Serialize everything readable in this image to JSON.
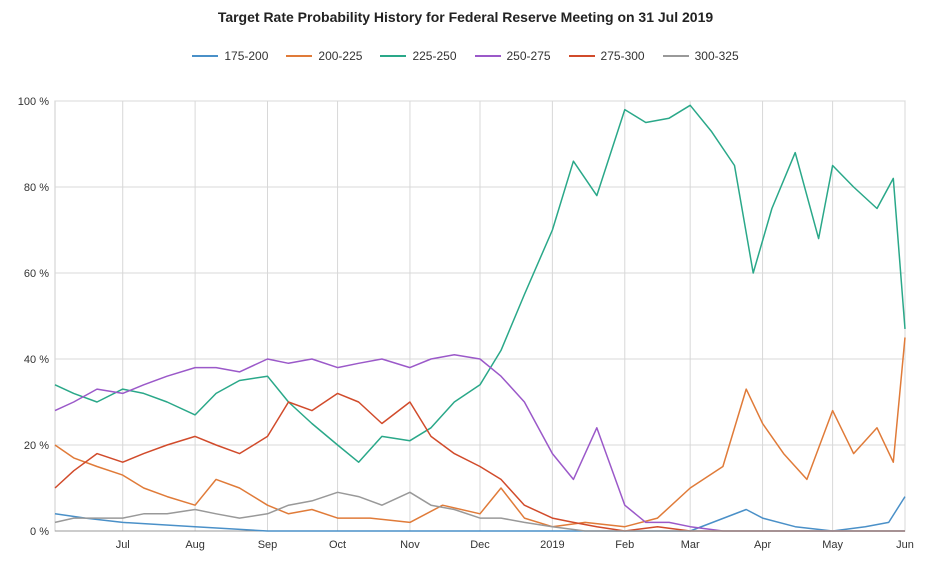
{
  "chart_data": {
    "type": "line",
    "title": "Target Rate Probability History for Federal Reserve Meeting on 31 Jul 2019",
    "xlabel": "",
    "ylabel": "",
    "ylim": [
      0,
      100
    ],
    "y_ticks": [
      "0 %",
      "20 %",
      "40 %",
      "60 %",
      "80 %",
      "100 %"
    ],
    "y_tick_values": [
      0,
      20,
      40,
      60,
      80,
      100
    ],
    "x_ticks": [
      "Jul",
      "Aug",
      "Sep",
      "Oct",
      "Nov",
      "Dec",
      "2019",
      "Feb",
      "Mar",
      "Apr",
      "May",
      "Jun"
    ],
    "x_tick_dates": [
      "2018-07-01",
      "2018-08-01",
      "2018-09-01",
      "2018-10-01",
      "2018-11-01",
      "2018-12-01",
      "2019-01-01",
      "2019-02-01",
      "2019-03-01",
      "2019-04-01",
      "2019-05-01",
      "2019-06-01"
    ],
    "xlim": [
      "2018-06-02",
      "2019-06-01"
    ],
    "grid": true,
    "legend_position": "top-center",
    "series": [
      {
        "name": "175-200",
        "color": "#4a90c8",
        "x": [
          "2018-06-02",
          "2018-06-15",
          "2018-07-01",
          "2018-08-01",
          "2018-09-01",
          "2018-10-01",
          "2018-11-01",
          "2018-12-01",
          "2019-01-01",
          "2019-02-01",
          "2019-03-01",
          "2019-03-25",
          "2019-04-01",
          "2019-04-15",
          "2019-05-01",
          "2019-05-15",
          "2019-05-25",
          "2019-06-01"
        ],
        "y": [
          4,
          3,
          2,
          1,
          0,
          0,
          0,
          0,
          0,
          0,
          0,
          5,
          3,
          1,
          0,
          1,
          2,
          8
        ]
      },
      {
        "name": "200-225",
        "color": "#e07b39",
        "x": [
          "2018-06-02",
          "2018-06-10",
          "2018-06-20",
          "2018-07-01",
          "2018-07-10",
          "2018-07-20",
          "2018-08-01",
          "2018-08-10",
          "2018-08-20",
          "2018-09-01",
          "2018-09-10",
          "2018-09-20",
          "2018-10-01",
          "2018-10-15",
          "2018-11-01",
          "2018-11-15",
          "2018-12-01",
          "2018-12-10",
          "2018-12-20",
          "2019-01-01",
          "2019-01-15",
          "2019-02-01",
          "2019-02-15",
          "2019-03-01",
          "2019-03-15",
          "2019-03-25",
          "2019-04-01",
          "2019-04-10",
          "2019-04-20",
          "2019-05-01",
          "2019-05-10",
          "2019-05-20",
          "2019-05-27",
          "2019-06-01"
        ],
        "y": [
          20,
          17,
          15,
          13,
          10,
          8,
          6,
          12,
          10,
          6,
          4,
          5,
          3,
          3,
          2,
          6,
          4,
          10,
          3,
          1,
          2,
          1,
          3,
          10,
          15,
          33,
          25,
          18,
          12,
          28,
          18,
          24,
          16,
          45
        ]
      },
      {
        "name": "225-250",
        "color": "#2aa889",
        "x": [
          "2018-06-02",
          "2018-06-10",
          "2018-06-20",
          "2018-07-01",
          "2018-07-10",
          "2018-07-20",
          "2018-08-01",
          "2018-08-10",
          "2018-08-20",
          "2018-09-01",
          "2018-09-10",
          "2018-09-20",
          "2018-10-01",
          "2018-10-10",
          "2018-10-20",
          "2018-11-01",
          "2018-11-10",
          "2018-11-20",
          "2018-12-01",
          "2018-12-10",
          "2018-12-20",
          "2019-01-01",
          "2019-01-10",
          "2019-01-20",
          "2019-02-01",
          "2019-02-10",
          "2019-02-20",
          "2019-03-01",
          "2019-03-10",
          "2019-03-20",
          "2019-03-28",
          "2019-04-05",
          "2019-04-15",
          "2019-04-25",
          "2019-05-01",
          "2019-05-10",
          "2019-05-20",
          "2019-05-27",
          "2019-06-01"
        ],
        "y": [
          34,
          32,
          30,
          33,
          32,
          30,
          27,
          32,
          35,
          36,
          30,
          25,
          20,
          16,
          22,
          21,
          24,
          30,
          34,
          42,
          55,
          70,
          86,
          78,
          98,
          95,
          96,
          99,
          93,
          85,
          60,
          75,
          88,
          68,
          85,
          80,
          75,
          82,
          47
        ]
      },
      {
        "name": "250-275",
        "color": "#9b59c9",
        "x": [
          "2018-06-02",
          "2018-06-10",
          "2018-06-20",
          "2018-07-01",
          "2018-07-10",
          "2018-07-20",
          "2018-08-01",
          "2018-08-10",
          "2018-08-20",
          "2018-09-01",
          "2018-09-10",
          "2018-09-20",
          "2018-10-01",
          "2018-10-10",
          "2018-10-20",
          "2018-11-01",
          "2018-11-10",
          "2018-11-20",
          "2018-12-01",
          "2018-12-10",
          "2018-12-20",
          "2019-01-01",
          "2019-01-10",
          "2019-01-20",
          "2019-02-01",
          "2019-02-10",
          "2019-02-20",
          "2019-03-01",
          "2019-03-15",
          "2019-04-01",
          "2019-06-01"
        ],
        "y": [
          28,
          30,
          33,
          32,
          34,
          36,
          38,
          38,
          37,
          40,
          39,
          40,
          38,
          39,
          40,
          38,
          40,
          41,
          40,
          36,
          30,
          18,
          12,
          24,
          6,
          2,
          2,
          1,
          0,
          0,
          0
        ]
      },
      {
        "name": "275-300",
        "color": "#d14b2b",
        "x": [
          "2018-06-02",
          "2018-06-10",
          "2018-06-20",
          "2018-07-01",
          "2018-07-10",
          "2018-07-20",
          "2018-08-01",
          "2018-08-10",
          "2018-08-20",
          "2018-09-01",
          "2018-09-10",
          "2018-09-20",
          "2018-10-01",
          "2018-10-10",
          "2018-10-20",
          "2018-11-01",
          "2018-11-10",
          "2018-11-20",
          "2018-12-01",
          "2018-12-10",
          "2018-12-20",
          "2019-01-01",
          "2019-01-10",
          "2019-01-20",
          "2019-02-01",
          "2019-02-15",
          "2019-03-01",
          "2019-04-01",
          "2019-06-01"
        ],
        "y": [
          10,
          14,
          18,
          16,
          18,
          20,
          22,
          20,
          18,
          22,
          30,
          28,
          32,
          30,
          25,
          30,
          22,
          18,
          15,
          12,
          6,
          3,
          2,
          1,
          0,
          1,
          0,
          0,
          0
        ]
      },
      {
        "name": "300-325",
        "color": "#999999",
        "x": [
          "2018-06-02",
          "2018-06-10",
          "2018-06-20",
          "2018-07-01",
          "2018-07-10",
          "2018-07-20",
          "2018-08-01",
          "2018-08-10",
          "2018-08-20",
          "2018-09-01",
          "2018-09-10",
          "2018-09-20",
          "2018-10-01",
          "2018-10-10",
          "2018-10-20",
          "2018-11-01",
          "2018-11-10",
          "2018-11-20",
          "2018-12-01",
          "2018-12-10",
          "2018-12-20",
          "2019-01-01",
          "2019-01-15",
          "2019-02-01",
          "2019-06-01"
        ],
        "y": [
          2,
          3,
          3,
          3,
          4,
          4,
          5,
          4,
          3,
          4,
          6,
          7,
          9,
          8,
          6,
          9,
          6,
          5,
          3,
          3,
          2,
          1,
          0,
          0,
          0
        ]
      }
    ]
  }
}
